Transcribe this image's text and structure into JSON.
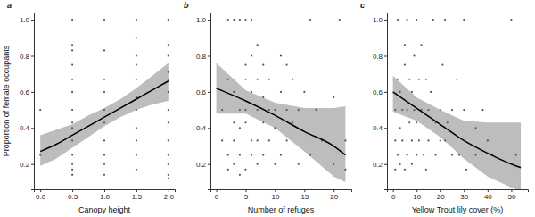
{
  "chart_data": [
    {
      "type": "scatter",
      "panel_label": "a",
      "x_label": "Canopy height",
      "y_label": "Proportion of female occupants",
      "xlim": [
        -0.1,
        2.1
      ],
      "xticks": [
        {
          "value": 0,
          "label": "0.0"
        },
        {
          "value": 0.5,
          "label": "0.5"
        },
        {
          "value": 1,
          "label": "1.0"
        },
        {
          "value": 1.5,
          "label": "1.5"
        },
        {
          "value": 2,
          "label": "2.0"
        }
      ],
      "ylim": [
        0.06,
        1.04
      ],
      "yticks": [
        {
          "value": 0.2,
          "label": "0.2"
        },
        {
          "value": 0.4,
          "label": "0.4"
        },
        {
          "value": 0.6,
          "label": "0.6"
        },
        {
          "value": 0.8,
          "label": "0.8"
        },
        {
          "value": 1,
          "label": "1.0"
        }
      ],
      "x": [
        0,
        0,
        0.5,
        0.5,
        0.5,
        0.5,
        0.5,
        0.5,
        0.5,
        0.5,
        0.5,
        0.5,
        0.5,
        0.5,
        0.5,
        0.5,
        1,
        1,
        1,
        1,
        1,
        1,
        1,
        1,
        1,
        1,
        1.5,
        1.5,
        1.5,
        1.5,
        1.5,
        1.5,
        1.5,
        1.5,
        1.5,
        1.5,
        1.5,
        2,
        2,
        2,
        2,
        2,
        2,
        2,
        2,
        2,
        2,
        2,
        2,
        2
      ],
      "values": [
        0.5,
        0.25,
        1,
        0.86,
        0.83,
        0.75,
        0.67,
        0.6,
        0.5,
        0.43,
        0.4,
        0.33,
        0.25,
        0.2,
        0.17,
        0.14,
        1,
        0.83,
        0.67,
        0.6,
        0.5,
        0.43,
        0.33,
        0.25,
        0.2,
        0.14,
        1,
        0.9,
        0.8,
        0.75,
        0.67,
        0.57,
        0.5,
        0.4,
        0.33,
        0.25,
        0.17,
        1,
        0.86,
        0.8,
        0.71,
        0.67,
        0.6,
        0.5,
        0.43,
        0.33,
        0.25,
        0.2,
        0.14,
        0.12
      ],
      "fit_x": [
        0,
        0.25,
        0.5,
        0.75,
        1,
        1.25,
        1.5,
        1.75,
        2
      ],
      "fit": [
        0.27,
        0.31,
        0.36,
        0.41,
        0.46,
        0.51,
        0.56,
        0.61,
        0.66
      ],
      "fit_lower": [
        0.19,
        0.23,
        0.29,
        0.35,
        0.41,
        0.46,
        0.5,
        0.53,
        0.55
      ],
      "fit_upper": [
        0.36,
        0.39,
        0.42,
        0.47,
        0.51,
        0.56,
        0.62,
        0.69,
        0.76
      ]
    },
    {
      "type": "scatter",
      "panel_label": "b",
      "x_label": "Number of refuges",
      "xlim": [
        -1,
        23
      ],
      "xticks": [
        0,
        5,
        10,
        15,
        20
      ],
      "ylim": [
        0.06,
        1.04
      ],
      "yticks": [
        {
          "value": 0.2,
          "label": "0.2"
        },
        {
          "value": 0.4,
          "label": "0.4"
        },
        {
          "value": 0.6,
          "label": "0.6"
        },
        {
          "value": 0.8,
          "label": "0.8"
        },
        {
          "value": 1,
          "label": "1.0"
        }
      ],
      "x": [
        1,
        1,
        2,
        2,
        2,
        2,
        3,
        3,
        3,
        3,
        3,
        4,
        4,
        4,
        4,
        4,
        5,
        5,
        5,
        5,
        5,
        5,
        6,
        6,
        6,
        6,
        6,
        7,
        7,
        7,
        7,
        7,
        8,
        8,
        8,
        8,
        9,
        9,
        9,
        10,
        10,
        10,
        11,
        11,
        11,
        12,
        12,
        12,
        13,
        13,
        14,
        14,
        15,
        16,
        16,
        17,
        18,
        20,
        20,
        21,
        22,
        22
      ],
      "values": [
        0.5,
        0.33,
        1,
        0.67,
        0.25,
        0.17,
        1,
        0.6,
        0.43,
        0.33,
        0.2,
        1,
        0.5,
        0.4,
        0.25,
        0.14,
        1,
        0.75,
        0.67,
        0.5,
        0.43,
        0.17,
        1,
        0.8,
        0.6,
        0.33,
        0.25,
        0.86,
        0.67,
        0.5,
        0.33,
        0.2,
        0.75,
        0.57,
        0.43,
        0.25,
        0.67,
        0.5,
        0.33,
        0.5,
        0.4,
        0.2,
        0.8,
        0.6,
        0.25,
        0.75,
        0.5,
        0.33,
        0.67,
        0.43,
        0.5,
        0.2,
        0.6,
        1,
        0.25,
        0.5,
        0.33,
        0.57,
        0.2,
        1,
        0.33,
        0.17
      ],
      "fit_x": [
        0,
        5,
        10,
        15,
        20,
        22
      ],
      "fit": [
        0.62,
        0.55,
        0.47,
        0.38,
        0.3,
        0.25
      ],
      "fit_lower": [
        0.48,
        0.48,
        0.4,
        0.27,
        0.13,
        0.1
      ],
      "fit_upper": [
        0.76,
        0.61,
        0.54,
        0.51,
        0.51,
        0.52
      ]
    },
    {
      "type": "scatter",
      "panel_label": "c",
      "x_label": "Yellow Trout lily cover (%)",
      "xlim": [
        -2.5,
        57
      ],
      "xticks": [
        0,
        10,
        20,
        30,
        40,
        50
      ],
      "ylim": [
        0.06,
        1.04
      ],
      "yticks": [
        {
          "value": 0.2,
          "label": "0.2"
        },
        {
          "value": 0.4,
          "label": "0.4"
        },
        {
          "value": 0.6,
          "label": "0.6"
        },
        {
          "value": 0.8,
          "label": "0.8"
        },
        {
          "value": 1,
          "label": "1.0"
        }
      ],
      "x": [
        1,
        1,
        1,
        2,
        2,
        2,
        3,
        3,
        3,
        4,
        4,
        5,
        5,
        5,
        6,
        6,
        6,
        7,
        7,
        8,
        8,
        8,
        9,
        9,
        10,
        10,
        10,
        11,
        11,
        12,
        12,
        13,
        14,
        14,
        15,
        15,
        16,
        17,
        18,
        18,
        20,
        20,
        21,
        22,
        22,
        23,
        25,
        25,
        27,
        28,
        30,
        30,
        31,
        35,
        35,
        38,
        40,
        42,
        50,
        52
      ],
      "values": [
        0.17,
        0.33,
        0.5,
        0.25,
        0.67,
        1,
        0.2,
        0.4,
        0.6,
        0.5,
        0.33,
        0.17,
        0.75,
        0.86,
        0.25,
        0.5,
        1,
        0.43,
        0.67,
        0.33,
        0.2,
        0.6,
        0.5,
        0.8,
        0.25,
        0.43,
        1,
        0.33,
        0.67,
        0.86,
        0.5,
        0.25,
        0.17,
        0.67,
        0.5,
        0.33,
        0.6,
        1,
        0.43,
        0.25,
        0.5,
        0.33,
        0.75,
        0.33,
        1,
        0.43,
        0.25,
        0.5,
        0.67,
        0.25,
        1,
        0.5,
        0.17,
        0.4,
        0.25,
        0.5,
        0.33,
        0.25,
        1,
        0.25
      ],
      "fit_x": [
        0,
        10,
        20,
        30,
        40,
        50,
        54
      ],
      "fit": [
        0.6,
        0.51,
        0.42,
        0.33,
        0.26,
        0.2,
        0.18
      ],
      "fit_lower": [
        0.49,
        0.44,
        0.35,
        0.23,
        0.13,
        0.07,
        0.05
      ],
      "fit_upper": [
        0.69,
        0.57,
        0.5,
        0.44,
        0.43,
        0.43,
        0.43
      ]
    }
  ]
}
